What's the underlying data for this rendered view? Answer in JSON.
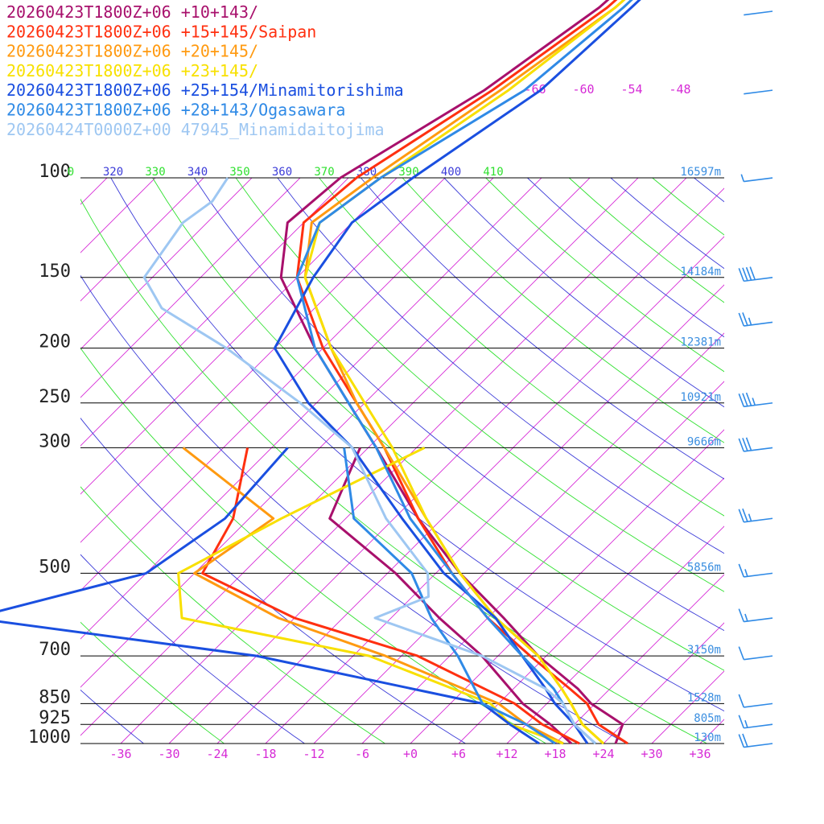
{
  "chart_data": {
    "type": "line",
    "title": "",
    "xlabel": "",
    "ylabel": "",
    "x_scale": "skewed temperature (°C)",
    "y_scale": "log pressure (hPa)",
    "xlim": [
      -40,
      40
    ],
    "ylim": [
      1000,
      100
    ],
    "grid": true,
    "legend_position": "top-left",
    "pressure_levels": [
      {
        "p": 100,
        "label": "100",
        "height": "16597m"
      },
      {
        "p": 150,
        "label": "150",
        "height": "14184m"
      },
      {
        "p": 200,
        "label": "200",
        "height": "12381m"
      },
      {
        "p": 250,
        "label": "250",
        "height": "10921m"
      },
      {
        "p": 300,
        "label": "300",
        "height": "9666m"
      },
      {
        "p": 500,
        "label": "500",
        "height": "5856m"
      },
      {
        "p": 700,
        "label": "700",
        "height": "3150m"
      },
      {
        "p": 850,
        "label": "850",
        "height": "1528m"
      },
      {
        "p": 925,
        "label": "925",
        "height": "805m"
      },
      {
        "p": 1000,
        "label": "1000",
        "height": "130m"
      }
    ],
    "temperature_ticks": [
      {
        "t": -36,
        "label": "-36"
      },
      {
        "t": -30,
        "label": "-30"
      },
      {
        "t": -24,
        "label": "-24"
      },
      {
        "t": -18,
        "label": "-18"
      },
      {
        "t": -12,
        "label": "-12"
      },
      {
        "t": -6,
        "label": "-6"
      },
      {
        "t": 0,
        "label": "+0"
      },
      {
        "t": 6,
        "label": "+6"
      },
      {
        "t": 12,
        "label": "+12"
      },
      {
        "t": 18,
        "label": "+18"
      },
      {
        "t": 24,
        "label": "+24"
      },
      {
        "t": 30,
        "label": "+30"
      },
      {
        "t": 36,
        "label": "+36"
      }
    ],
    "isotherm_top_labels": [
      {
        "t": -66,
        "label": "-66"
      },
      {
        "t": -60,
        "label": "-60"
      },
      {
        "t": -54,
        "label": "-54"
      },
      {
        "t": -48,
        "label": "-48"
      }
    ],
    "theta_labels": [
      {
        "label": "0",
        "kind": "dry"
      },
      {
        "label": "320",
        "kind": "moist"
      },
      {
        "label": "330",
        "kind": "dry"
      },
      {
        "label": "340",
        "kind": "moist"
      },
      {
        "label": "350",
        "kind": "dry"
      },
      {
        "label": "360",
        "kind": "moist"
      },
      {
        "label": "370",
        "kind": "dry"
      },
      {
        "label": "380",
        "kind": "moist"
      },
      {
        "label": "390",
        "kind": "dry"
      },
      {
        "label": "400",
        "kind": "moist"
      },
      {
        "label": "410",
        "kind": "dry"
      }
    ],
    "series": [
      {
        "name": "20260423T1800Z+06 +10+143/",
        "color": "#a8106c",
        "temperature": [
          [
            10,
            -68
          ],
          [
            20,
            -67
          ],
          [
            30,
            -66
          ],
          [
            50,
            -68
          ],
          [
            70,
            -72
          ],
          [
            100,
            -79
          ],
          [
            120,
            -80
          ],
          [
            150,
            -74
          ],
          [
            200,
            -61
          ],
          [
            250,
            -50
          ],
          [
            300,
            -41
          ],
          [
            400,
            -27
          ],
          [
            500,
            -15
          ],
          [
            600,
            -4
          ],
          [
            700,
            5
          ],
          [
            800,
            14
          ],
          [
            850,
            17.5
          ],
          [
            925,
            24
          ],
          [
            1000,
            25.5
          ]
        ],
        "dewpoint": [
          [
            300,
            -43
          ],
          [
            400,
            -38
          ],
          [
            500,
            -23
          ],
          [
            600,
            -12
          ],
          [
            700,
            -2
          ],
          [
            850,
            9
          ],
          [
            925,
            15
          ],
          [
            1000,
            20
          ]
        ]
      },
      {
        "name": "20260423T1800Z+06 +15+145/Saipan",
        "color": "#ff3010",
        "temperature": [
          [
            10,
            -67
          ],
          [
            20,
            -66
          ],
          [
            30,
            -65
          ],
          [
            50,
            -67
          ],
          [
            70,
            -71
          ],
          [
            100,
            -77
          ],
          [
            120,
            -78
          ],
          [
            150,
            -72
          ],
          [
            200,
            -60
          ],
          [
            250,
            -49
          ],
          [
            300,
            -40
          ],
          [
            400,
            -27
          ],
          [
            500,
            -16
          ],
          [
            600,
            -6
          ],
          [
            700,
            4
          ],
          [
            800,
            13
          ],
          [
            850,
            17
          ],
          [
            925,
            21
          ],
          [
            1000,
            27
          ]
        ],
        "dewpoint": [
          [
            300,
            -57
          ],
          [
            400,
            -50
          ],
          [
            500,
            -47
          ],
          [
            600,
            -30
          ],
          [
            700,
            -10
          ],
          [
            850,
            8
          ],
          [
            925,
            14
          ],
          [
            1000,
            21
          ]
        ]
      },
      {
        "name": "20260423T1800Z+06 +20+145/",
        "color": "#ff9a10",
        "temperature": [
          [
            10,
            -66
          ],
          [
            20,
            -65
          ],
          [
            30,
            -64
          ],
          [
            50,
            -66
          ],
          [
            70,
            -70
          ],
          [
            100,
            -75
          ],
          [
            120,
            -77
          ],
          [
            150,
            -71
          ],
          [
            200,
            -59
          ],
          [
            250,
            -49
          ],
          [
            300,
            -40
          ],
          [
            400,
            -26
          ],
          [
            500,
            -15
          ],
          [
            600,
            -5
          ],
          [
            700,
            5
          ],
          [
            800,
            12
          ],
          [
            850,
            15
          ],
          [
            925,
            19
          ],
          [
            1000,
            24
          ]
        ],
        "dewpoint": [
          [
            300,
            -65
          ],
          [
            400,
            -45
          ],
          [
            500,
            -48
          ],
          [
            600,
            -32
          ],
          [
            700,
            -14
          ],
          [
            850,
            6
          ],
          [
            925,
            12
          ],
          [
            1000,
            19
          ]
        ]
      },
      {
        "name": "20260423T1800Z+06 +23+145/",
        "color": "#f8e000",
        "temperature": [
          [
            10,
            -66
          ],
          [
            20,
            -65
          ],
          [
            30,
            -64
          ],
          [
            50,
            -66
          ],
          [
            70,
            -69
          ],
          [
            100,
            -74
          ],
          [
            120,
            -76
          ],
          [
            150,
            -71
          ],
          [
            200,
            -59
          ],
          [
            250,
            -48
          ],
          [
            300,
            -39
          ],
          [
            400,
            -26
          ],
          [
            500,
            -15
          ],
          [
            600,
            -5
          ],
          [
            700,
            5
          ],
          [
            800,
            12
          ],
          [
            850,
            15
          ],
          [
            925,
            19
          ],
          [
            1000,
            24
          ]
        ],
        "dewpoint": [
          [
            300,
            -35
          ],
          [
            400,
            -44
          ],
          [
            500,
            -50
          ],
          [
            600,
            -44
          ],
          [
            700,
            -16
          ],
          [
            850,
            5
          ],
          [
            925,
            10
          ],
          [
            1000,
            19
          ]
        ]
      },
      {
        "name": "20260423T1800Z+06 +25+154/Minamitorishima",
        "color": "#1a4fe0",
        "temperature": [
          [
            10,
            -68
          ],
          [
            20,
            -66
          ],
          [
            30,
            -63
          ],
          [
            50,
            -64
          ],
          [
            70,
            -65
          ],
          [
            100,
            -70
          ],
          [
            120,
            -72
          ],
          [
            150,
            -70
          ],
          [
            200,
            -66
          ],
          [
            250,
            -55
          ],
          [
            300,
            -44
          ],
          [
            400,
            -29
          ],
          [
            500,
            -17
          ],
          [
            600,
            -5
          ],
          [
            700,
            3
          ],
          [
            800,
            10
          ],
          [
            850,
            13
          ],
          [
            925,
            18
          ],
          [
            1000,
            22
          ]
        ],
        "dewpoint": [
          [
            300,
            -52
          ],
          [
            400,
            -51
          ],
          [
            500,
            -54
          ],
          [
            600,
            -70
          ],
          [
            700,
            -30
          ],
          [
            850,
            4
          ],
          [
            925,
            10
          ],
          [
            1000,
            16
          ]
        ]
      },
      {
        "name": "20260423T1800Z+06 +28+143/Ogasawara",
        "color": "#2f8ae6",
        "temperature": [
          [
            10,
            -67
          ],
          [
            20,
            -66
          ],
          [
            30,
            -64
          ],
          [
            50,
            -65
          ],
          [
            70,
            -67
          ],
          [
            100,
            -74
          ],
          [
            120,
            -76
          ],
          [
            150,
            -72
          ],
          [
            200,
            -61
          ],
          [
            250,
            -50
          ],
          [
            300,
            -41
          ],
          [
            400,
            -28
          ],
          [
            500,
            -16
          ],
          [
            600,
            -6
          ],
          [
            700,
            3
          ],
          [
            800,
            11
          ],
          [
            850,
            14
          ],
          [
            925,
            18
          ],
          [
            1000,
            23
          ]
        ],
        "dewpoint": [
          [
            300,
            -45
          ],
          [
            400,
            -35
          ],
          [
            500,
            -21
          ],
          [
            600,
            -13
          ],
          [
            700,
            -5
          ],
          [
            850,
            4
          ],
          [
            925,
            12
          ],
          [
            1000,
            18
          ]
        ]
      },
      {
        "name": "20260424T0000Z+00 47945_Minamidaitojima",
        "color": "#9ec7f2",
        "temperature": [
          [
            100,
            -93
          ],
          [
            110,
            -92
          ],
          [
            120,
            -93
          ],
          [
            150,
            -91
          ],
          [
            170,
            -85
          ],
          [
            200,
            -72
          ],
          [
            250,
            -56
          ],
          [
            300,
            -44
          ],
          [
            400,
            -31
          ],
          [
            500,
            -19
          ],
          [
            550,
            -16
          ],
          [
            600,
            -20
          ],
          [
            700,
            -2
          ],
          [
            800,
            10
          ],
          [
            850,
            14
          ],
          [
            925,
            18
          ],
          [
            1000,
            23
          ]
        ],
        "dewpoint": []
      }
    ],
    "wind_barbs": [
      {
        "p": 30,
        "kind": "calm"
      },
      {
        "p": 70,
        "kind": "calm"
      },
      {
        "p": 100,
        "knots": 5
      },
      {
        "p": 150,
        "knots": 40
      },
      {
        "p": 180,
        "knots": 25
      },
      {
        "p": 250,
        "knots": 35
      },
      {
        "p": 300,
        "knots": 30
      },
      {
        "p": 400,
        "knots": 25
      },
      {
        "p": 500,
        "knots": 15
      },
      {
        "p": 600,
        "knots": 15
      },
      {
        "p": 700,
        "knots": 10
      },
      {
        "p": 850,
        "knots": 10
      },
      {
        "p": 925,
        "knots": 15
      },
      {
        "p": 1000,
        "knots": 20
      }
    ]
  },
  "colors": {
    "isotherm": "#d62ad6",
    "dry_adiabat": "#3b3bd8",
    "moist_adiabat": "#2fe02f",
    "pressure_line": "#000000",
    "height_label": "#3a8ee0",
    "barb": "#2f8ae6"
  }
}
